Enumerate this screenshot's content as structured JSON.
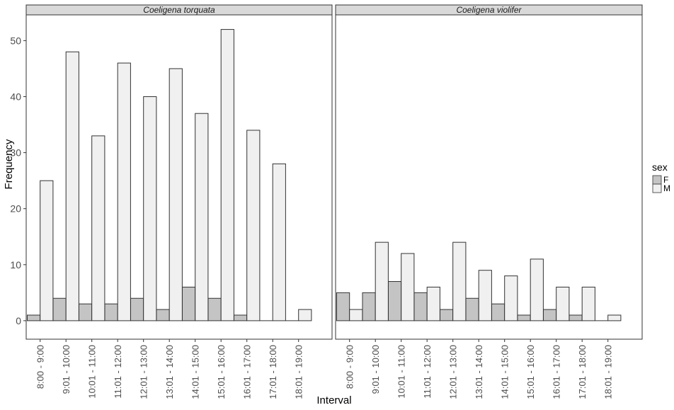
{
  "chart_data": {
    "type": "bar",
    "xlabel": "Interval",
    "ylabel": "Frequency",
    "ylim": [
      -3.3,
      54.6
    ],
    "yticks": [
      0,
      10,
      20,
      30,
      40,
      50
    ],
    "grid": false,
    "legend": {
      "title": "sex",
      "position": "right",
      "entries": [
        {
          "label": "F",
          "color": "#c4c4c4"
        },
        {
          "label": "M",
          "color": "#f0f0f0"
        }
      ]
    },
    "categories": [
      "8:00 - 9:00",
      "9:01 - 10:00",
      "10:01 - 11:00",
      "11:01 - 12:00",
      "12:01 - 13:00",
      "13:01 - 14:00",
      "14:01 - 15:00",
      "15:01 - 16:00",
      "16:01 - 17:00",
      "17:01 - 18:00",
      "18:01 - 19:00"
    ],
    "panels": [
      {
        "title": "Coeligena torquata",
        "series": [
          {
            "name": "F",
            "values": [
              1,
              4,
              3,
              3,
              4,
              2,
              6,
              4,
              1,
              0,
              0
            ]
          },
          {
            "name": "M",
            "values": [
              25,
              48,
              33,
              46,
              40,
              45,
              37,
              52,
              34,
              28,
              2
            ]
          }
        ]
      },
      {
        "title": "Coeligena violifer",
        "series": [
          {
            "name": "F",
            "values": [
              5,
              5,
              7,
              5,
              2,
              4,
              3,
              1,
              2,
              1,
              0
            ]
          },
          {
            "name": "M",
            "values": [
              2,
              14,
              12,
              6,
              14,
              9,
              8,
              11,
              6,
              6,
              1
            ]
          }
        ]
      }
    ]
  }
}
